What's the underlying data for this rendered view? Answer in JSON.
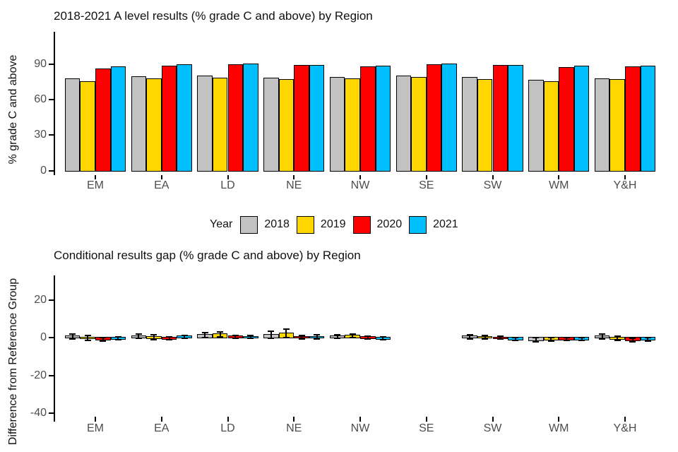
{
  "figure": {
    "background": "#ffffff",
    "axis_color": "#000000",
    "tick_label_color": "#4d4d4d",
    "title_color": "#111111"
  },
  "legend": {
    "title": "Year",
    "position": "bottom-center",
    "items": [
      {
        "label": "2018",
        "color": "#c2c2c2"
      },
      {
        "label": "2019",
        "color": "#ffd700"
      },
      {
        "label": "2020",
        "color": "#ff0000"
      },
      {
        "label": "2021",
        "color": "#00bfff"
      }
    ]
  },
  "chart_data": [
    {
      "type": "bar",
      "title": "2018-2021 A level results (% grade C and above) by Region",
      "xlabel": "",
      "ylabel": "% grade C and above",
      "categories": [
        "EM",
        "EA",
        "LD",
        "NE",
        "NW",
        "SE",
        "SW",
        "WM",
        "Y&H"
      ],
      "yticks": [
        0,
        30,
        60,
        90
      ],
      "ylim": [
        0,
        117
      ],
      "grid": false,
      "legend_position": "bottom",
      "series": [
        {
          "name": "2018",
          "color": "#c2c2c2",
          "values": [
            76.8,
            78.7,
            79.4,
            77.6,
            78.1,
            79.3,
            78.3,
            76.1,
            77.1
          ]
        },
        {
          "name": "2019",
          "color": "#ffd700",
          "values": [
            74.4,
            77.3,
            77.7,
            76.6,
            77.1,
            78.4,
            76.7,
            74.9,
            76.7
          ]
        },
        {
          "name": "2020",
          "color": "#ff0000",
          "values": [
            85.5,
            88.0,
            88.9,
            88.5,
            87.4,
            88.8,
            88.2,
            86.8,
            87.0
          ]
        },
        {
          "name": "2021",
          "color": "#00bfff",
          "values": [
            87.3,
            88.7,
            89.6,
            88.2,
            88.0,
            89.3,
            88.2,
            87.8,
            88.0
          ]
        }
      ]
    },
    {
      "type": "bar",
      "title": "Conditional results gap (% grade C and above) by Region",
      "xlabel": "",
      "ylabel": "Difference from Reference Group",
      "categories": [
        "EM",
        "EA",
        "LD",
        "NE",
        "NW",
        "SE",
        "SW",
        "WM",
        "Y&H"
      ],
      "yticks": [
        20,
        0,
        -20,
        -40
      ],
      "ylim": [
        -44.5,
        33
      ],
      "grid": false,
      "reference_group": "SE",
      "error_bars": true,
      "series": [
        {
          "name": "2018",
          "color": "#c2c2c2",
          "values": [
            0.6,
            0.6,
            1.3,
            1.4,
            0.6,
            null,
            0.4,
            -1.2,
            0.5
          ],
          "errors": [
            1.3,
            1.1,
            1.4,
            1.8,
            1.0,
            null,
            1.1,
            1.2,
            1.2
          ]
        },
        {
          "name": "2019",
          "color": "#ffd700",
          "values": [
            -0.3,
            0.1,
            1.7,
            2.2,
            1.0,
            null,
            0.3,
            -0.9,
            -0.4
          ],
          "errors": [
            1.3,
            1.3,
            1.3,
            2.1,
            1.0,
            null,
            1.0,
            1.0,
            1.1
          ]
        },
        {
          "name": "2020",
          "color": "#ff0000",
          "values": [
            -1.0,
            -0.4,
            0.4,
            0.2,
            0.1,
            null,
            -0.1,
            -0.8,
            -1.4
          ],
          "errors": [
            0.9,
            0.7,
            0.9,
            1.1,
            0.7,
            null,
            0.7,
            0.8,
            0.9
          ]
        },
        {
          "name": "2021",
          "color": "#00bfff",
          "values": [
            -0.4,
            0.4,
            0.3,
            0.3,
            -0.4,
            null,
            -0.8,
            -0.8,
            -0.9
          ],
          "errors": [
            0.9,
            0.8,
            0.7,
            1.1,
            0.7,
            null,
            0.7,
            0.8,
            0.8
          ]
        }
      ]
    }
  ]
}
